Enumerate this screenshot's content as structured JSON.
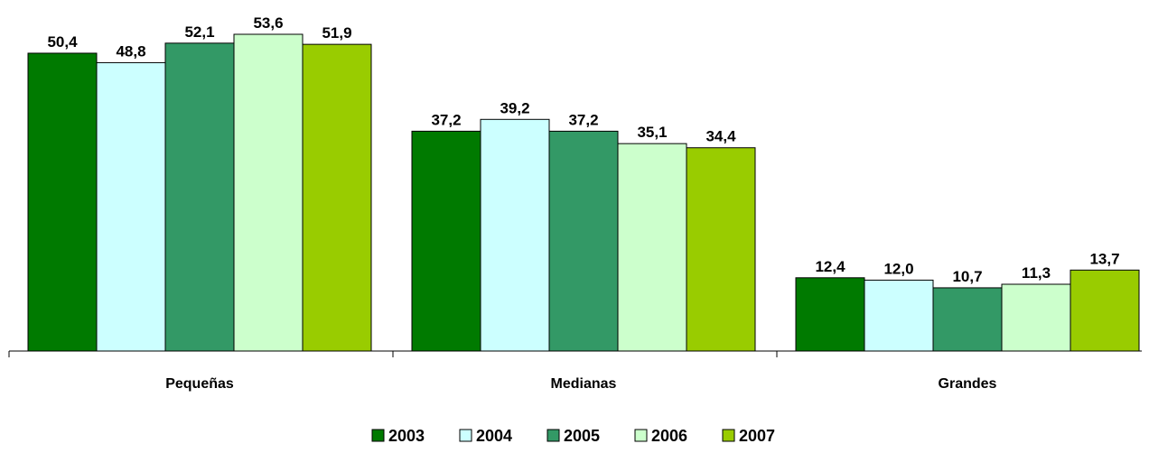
{
  "chart_data": {
    "type": "bar",
    "categories": [
      "Pequeñas",
      "Medianas",
      "Grandes"
    ],
    "series": [
      {
        "name": "2003",
        "color": "#007A00",
        "values": [
          "50,4",
          "37,2",
          "12,4"
        ]
      },
      {
        "name": "2004",
        "color": "#CCFFFF",
        "values": [
          "48,8",
          "39,2",
          "12,0"
        ]
      },
      {
        "name": "2005",
        "color": "#339966",
        "values": [
          "52,1",
          "37,2",
          "10,7"
        ]
      },
      {
        "name": "2006",
        "color": "#CCFFCC",
        "values": [
          "53,6",
          "35,1",
          "11,3"
        ]
      },
      {
        "name": "2007",
        "color": "#99CC00",
        "values": [
          "51,9",
          "34,4",
          "13,7"
        ]
      }
    ],
    "ylim": [
      0,
      55
    ],
    "grid": false,
    "legend_position": "bottom"
  }
}
